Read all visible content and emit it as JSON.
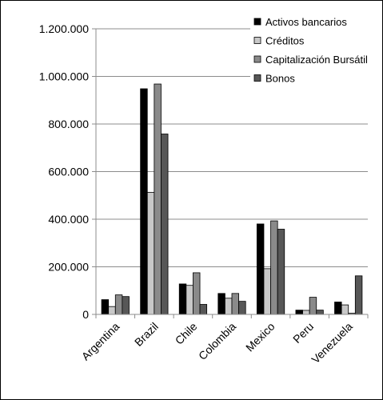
{
  "chart_data": {
    "type": "bar",
    "title": "",
    "xlabel": "",
    "ylabel": "",
    "categories": [
      "Argentina",
      "Brazil",
      "Chile",
      "Colombia",
      "Mexico",
      "Peru",
      "Venezuela"
    ],
    "series": [
      {
        "name": "Activos bancarios",
        "values": [
          62000,
          948000,
          128000,
          88000,
          380000,
          18000,
          52000
        ]
      },
      {
        "name": "Créditos",
        "values": [
          33000,
          513000,
          122000,
          68000,
          192000,
          17000,
          40000
        ]
      },
      {
        "name": "Capitalización Bursátil",
        "values": [
          82000,
          968000,
          175000,
          88000,
          393000,
          72000,
          5000
        ]
      },
      {
        "name": "Bonos",
        "values": [
          75000,
          758000,
          42000,
          55000,
          358000,
          18000,
          162000
        ]
      }
    ],
    "yticks": [
      0,
      200000,
      400000,
      600000,
      800000,
      1000000,
      1200000
    ],
    "ytick_labels": [
      "0",
      "200.000",
      "400.000",
      "600.000",
      "800.000",
      "1.000.000",
      "1.200.000"
    ],
    "ylim": [
      0,
      1200000
    ],
    "grid": true,
    "legend_position": "top-right",
    "colors": {
      "Activos bancarios": "#000000",
      "Créditos": "#c8c8c8",
      "Capitalización Bursátil": "#8a8a8a",
      "Bonos": "#575757",
      "grid": "#8c8c8c",
      "axis": "#8c8c8c",
      "bar_outline": "#000000",
      "frame": "#000000"
    }
  }
}
